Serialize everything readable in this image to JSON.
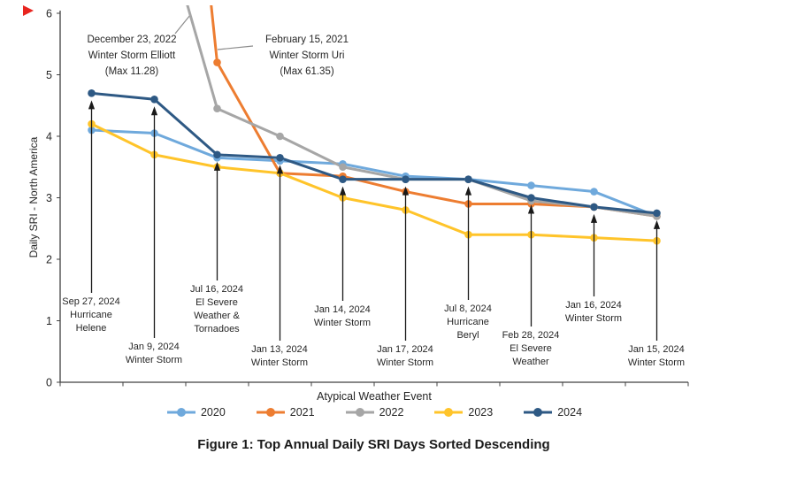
{
  "caption": "Figure 1: Top Annual Daily SRI Days Sorted Descending",
  "chart_data": {
    "type": "line",
    "xlabel": "Atypical Weather Event",
    "ylabel": "Daily SRI - North America",
    "ylim": [
      0,
      6
    ],
    "yticks": [
      0,
      1,
      2,
      3,
      4,
      5,
      6
    ],
    "x_description": "Top 10 daily SRI events per year, ranks 1-10 sorted descending (no x tick labels shown)",
    "legend_position": "bottom",
    "grid": false,
    "series": [
      {
        "name": "2020",
        "color": "#6FA9DC",
        "values": [
          4.1,
          4.05,
          3.65,
          3.6,
          3.55,
          3.35,
          3.3,
          3.2,
          3.1,
          2.7
        ]
      },
      {
        "name": "2021",
        "color": "#ED7D31",
        "values": [
          61.35,
          15,
          5.2,
          3.4,
          3.35,
          3.1,
          2.9,
          2.9,
          2.85,
          2.7
        ],
        "note": "ranks 1-2 exceed y-axis and are clipped; rank-1 max 61.35 (Feb 15, 2021 Winter Storm Uri); rank-2 estimated"
      },
      {
        "name": "2022",
        "color": "#A6A6A6",
        "values": [
          11.28,
          8,
          4.45,
          4.0,
          3.5,
          3.3,
          3.3,
          2.95,
          2.85,
          2.7
        ],
        "note": "ranks 1-2 exceed y-axis and are clipped; rank-1 max 11.28 (Dec 23, 2022 Winter Storm Elliott); rank-2 estimated"
      },
      {
        "name": "2023",
        "color": "#FFC42A",
        "values": [
          4.2,
          3.7,
          3.5,
          3.4,
          3.0,
          2.8,
          2.4,
          2.4,
          2.35,
          2.3
        ]
      },
      {
        "name": "2024",
        "color": "#2E5984",
        "values": [
          4.7,
          4.6,
          3.7,
          3.65,
          3.3,
          3.3,
          3.3,
          3.0,
          2.85,
          2.75
        ]
      }
    ],
    "callouts": [
      {
        "text": "December 23, 2022\nWinter Storm Elliott\n(Max 11.28)",
        "points_to_series": "2022"
      },
      {
        "text": "February 15, 2021\nWinter Storm Uri\n(Max 61.35)",
        "points_to_series": "2021"
      }
    ],
    "annotations": [
      {
        "text": "Sep 27, 2024\nHurricane\nHelene",
        "x_index": 0
      },
      {
        "text": "Jan 9, 2024\nWinter Storm",
        "x_index": 1
      },
      {
        "text": "Jul 16, 2024\nEl Severe\nWeather &\nTornadoes",
        "x_index": 2
      },
      {
        "text": "Jan 13, 2024\nWinter Storm",
        "x_index": 3
      },
      {
        "text": "Jan 14, 2024\nWinter Storm",
        "x_index": 4
      },
      {
        "text": "Jan 17, 2024\nWinter Storm",
        "x_index": 5
      },
      {
        "text": "Jul 8, 2024\nHurricane\nBeryl",
        "x_index": 6
      },
      {
        "text": "Feb 28, 2024\nEl Severe\nWeather",
        "x_index": 7
      },
      {
        "text": "Jan 16, 2024\nWinter Storm",
        "x_index": 8
      },
      {
        "text": "Jan 15, 2024\nWinter Storm",
        "x_index": 9
      }
    ]
  }
}
